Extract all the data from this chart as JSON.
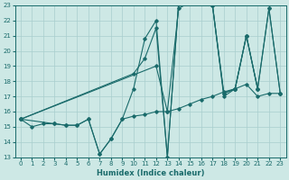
{
  "xlabel": "Humidex (Indice chaleur)",
  "xlim": [
    -0.5,
    23.5
  ],
  "ylim": [
    13,
    23
  ],
  "xticks": [
    0,
    1,
    2,
    3,
    4,
    5,
    6,
    7,
    8,
    9,
    10,
    11,
    12,
    13,
    14,
    15,
    16,
    17,
    18,
    19,
    20,
    21,
    22,
    23
  ],
  "yticks": [
    13,
    14,
    15,
    16,
    17,
    18,
    19,
    20,
    21,
    22,
    23
  ],
  "bg_color": "#cde8e5",
  "line_color": "#1a6b6b",
  "grid_color": "#a8cece",
  "line1_x": [
    0,
    1,
    2,
    3,
    4,
    5,
    6,
    7,
    8,
    9,
    10,
    11,
    12,
    13,
    14,
    15,
    16,
    17,
    18,
    19,
    20,
    21,
    22,
    23
  ],
  "line1_y": [
    15.5,
    15,
    15.2,
    15.2,
    15.1,
    15.1,
    15.5,
    13.2,
    14.2,
    15.5,
    15.7,
    15.8,
    16.0,
    16.0,
    16.2,
    16.5,
    16.8,
    17.0,
    17.3,
    17.5,
    17.8,
    17.0,
    17.2,
    17.2
  ],
  "line2_x": [
    0,
    3,
    4,
    5,
    6,
    7,
    8,
    9,
    10,
    11,
    12,
    13,
    14,
    15,
    16,
    17,
    18,
    19,
    20,
    21,
    22,
    23
  ],
  "line2_y": [
    15.5,
    15.2,
    15.1,
    15.1,
    15.5,
    13.2,
    14.2,
    15.5,
    17.5,
    20.8,
    22.0,
    13.0,
    23.2,
    23.5,
    23.2,
    23.0,
    17.2,
    17.5,
    21.0,
    17.5,
    22.8,
    17.2
  ],
  "line3_x": [
    0,
    10,
    11,
    12,
    13,
    14,
    15,
    16,
    17,
    18,
    19,
    20,
    21
  ],
  "line3_y": [
    15.5,
    18.5,
    19.5,
    21.5,
    13.0,
    23.2,
    23.5,
    23.2,
    23.0,
    17.2,
    17.5,
    21.0,
    17.5
  ],
  "line4_x": [
    0,
    12,
    13,
    14,
    15,
    16,
    17,
    18,
    19,
    20,
    21,
    22,
    23
  ],
  "line4_y": [
    15.5,
    19.0,
    16.0,
    22.8,
    23.2,
    23.2,
    23.0,
    17.0,
    17.5,
    21.0,
    17.5,
    22.8,
    17.2
  ]
}
